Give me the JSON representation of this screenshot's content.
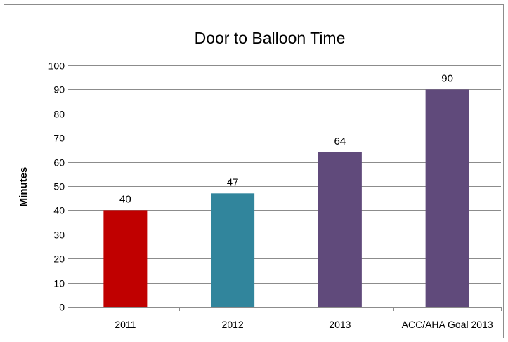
{
  "chart_data": {
    "type": "bar",
    "title": "Door to Balloon Time",
    "xlabel": "",
    "ylabel": "Minutes",
    "categories": [
      "2011",
      "2012",
      "2013",
      "ACC/AHA Goal 2013"
    ],
    "values": [
      40,
      47,
      64,
      90
    ],
    "data_labels": [
      "40",
      "47",
      "64",
      "90"
    ],
    "colors": [
      "#c00000",
      "#31859c",
      "#604a7b",
      "#604a7b"
    ],
    "ylim": [
      0,
      100
    ],
    "yticks": [
      0,
      10,
      20,
      30,
      40,
      50,
      60,
      70,
      80,
      90,
      100
    ],
    "ytick_labels": [
      "0",
      "10",
      "20",
      "30",
      "40",
      "50",
      "60",
      "70",
      "80",
      "90",
      "100"
    ],
    "grid": true,
    "legend": "none"
  }
}
